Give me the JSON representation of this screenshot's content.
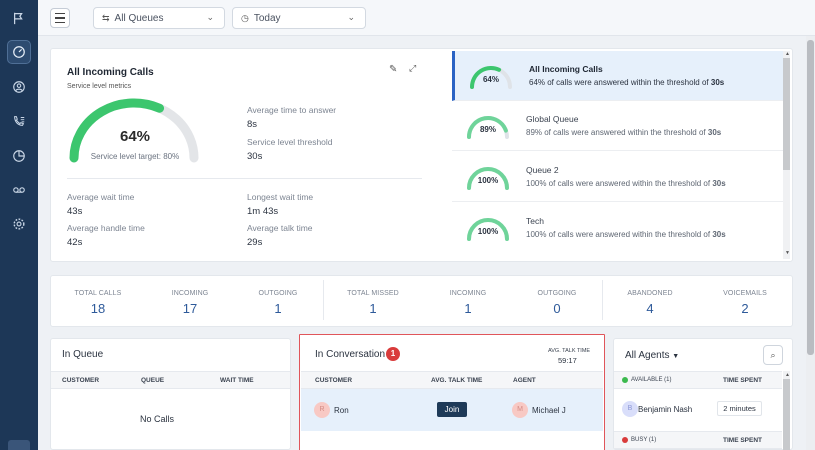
{
  "topbar": {
    "queue_filter": "All Queues",
    "date_filter": "Today"
  },
  "service_level": {
    "title": "All Incoming Calls",
    "subtitle": "Service level metrics",
    "gauge_percent": "64%",
    "gauge_value": 0.64,
    "target_label": "Service level target: 80%",
    "avg_time_to_answer_label": "Average time to answer",
    "avg_time_to_answer": "8s",
    "threshold_label": "Service level threshold",
    "threshold": "30s",
    "avg_wait_label": "Average wait time",
    "avg_wait": "43s",
    "longest_wait_label": "Longest wait time",
    "longest_wait": "1m 43s",
    "avg_handle_label": "Average handle time",
    "avg_handle": "42s",
    "avg_talk_label": "Average talk time",
    "avg_talk": "29s"
  },
  "queues": [
    {
      "name": "All Incoming Calls",
      "pct": "64%",
      "value": 0.64,
      "desc_prefix": "64% of calls were answered within the threshold of ",
      "desc_threshold": "30s"
    },
    {
      "name": "Global Queue",
      "pct": "89%",
      "value": 0.89,
      "desc_prefix": "89% of calls were answered within the threshold of ",
      "desc_threshold": "30s"
    },
    {
      "name": "Queue 2",
      "pct": "100%",
      "value": 1.0,
      "desc_prefix": "100% of calls were answered within the threshold of ",
      "desc_threshold": "30s"
    },
    {
      "name": "Tech",
      "pct": "100%",
      "value": 1.0,
      "desc_prefix": "100% of calls were answered within the threshold of ",
      "desc_threshold": "30s"
    }
  ],
  "stats": [
    {
      "label": "TOTAL CALLS",
      "value": "18"
    },
    {
      "label": "INCOMING",
      "value": "17"
    },
    {
      "label": "OUTGOING",
      "value": "1"
    },
    {
      "label": "TOTAL MISSED",
      "value": "1"
    },
    {
      "label": "INCOMING",
      "value": "1"
    },
    {
      "label": "OUTGOING",
      "value": "0"
    },
    {
      "label": "ABANDONED",
      "value": "4"
    },
    {
      "label": "VOICEMAILS",
      "value": "2"
    }
  ],
  "in_queue": {
    "title": "In Queue",
    "col_customer": "CUSTOMER",
    "col_queue": "QUEUE",
    "col_wait": "WAIT TIME",
    "empty": "No Calls"
  },
  "in_conversation": {
    "title": "In Conversation",
    "count": "1",
    "avg_talk_label": "AVG. TALK TIME",
    "avg_talk_value": "59:17",
    "col_customer": "CUSTOMER",
    "col_talk": "AVG. TALK TIME",
    "col_agent": "AGENT",
    "row": {
      "customer_initial": "R",
      "customer": "Ron",
      "join_label": "Join",
      "agent_initial": "M",
      "agent": "Michael J"
    }
  },
  "agents": {
    "title": "All Agents",
    "available_label": "AVAILABLE (1)",
    "time_spent": "TIME SPENT",
    "agent_initial": "B",
    "agent_name": "Benjamin Nash",
    "agent_time": "2 minutes",
    "busy_label": "BUSY (1)",
    "time_spent_2": "TIME SPENT"
  },
  "colors": {
    "sidebar": "#1d3757",
    "gauge_fill": "#3cc66e",
    "gauge_track": "#e3e5e8",
    "accent": "#2a63c4",
    "badge": "#d93b3b",
    "highlight_box": "#e0555a"
  }
}
